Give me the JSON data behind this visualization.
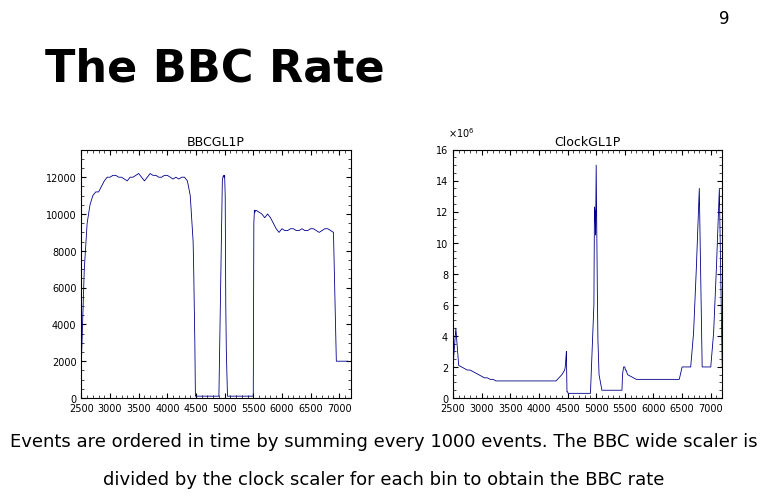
{
  "slide_number": "9",
  "title": "The BBC Rate",
  "subtitle_line1": "Events are ordered in time by summing every 1000 events. The BBC wide scaler is",
  "subtitle_line2": "divided by the clock scaler for each bin to obtain the BBC rate",
  "plot1": {
    "title": "BBCGL1P",
    "xlabel_ticks": [
      2500,
      3000,
      3500,
      4000,
      4500,
      5000,
      5500,
      6000,
      6500,
      7000
    ],
    "ylabel_ticks": [
      0,
      2000,
      4000,
      6000,
      8000,
      10000,
      12000
    ],
    "xlim": [
      2500,
      7200
    ],
    "ylim": [
      0,
      13500
    ],
    "color": "#00008B",
    "data_x": [
      2500,
      2550,
      2600,
      2650,
      2700,
      2750,
      2800,
      2850,
      2900,
      2950,
      3000,
      3050,
      3100,
      3150,
      3200,
      3250,
      3300,
      3350,
      3400,
      3450,
      3500,
      3550,
      3600,
      3650,
      3700,
      3750,
      3800,
      3850,
      3900,
      3950,
      4000,
      4050,
      4100,
      4150,
      4200,
      4250,
      4300,
      4350,
      4400,
      4450,
      4460,
      4470,
      4480,
      4490,
      4500,
      4510,
      4520,
      4530,
      4540,
      4550,
      4560,
      4570,
      4580,
      4590,
      4600,
      4650,
      4700,
      4750,
      4800,
      4850,
      4900,
      4960,
      4970,
      4980,
      4990,
      5000,
      5010,
      5020,
      5030,
      5050,
      5100,
      5150,
      5200,
      5250,
      5300,
      5350,
      5400,
      5450,
      5460,
      5470,
      5480,
      5490,
      5500,
      5510,
      5520,
      5530,
      5540,
      5550,
      5600,
      5650,
      5700,
      5750,
      5800,
      5850,
      5900,
      5950,
      6000,
      6050,
      6100,
      6150,
      6200,
      6250,
      6300,
      6350,
      6400,
      6450,
      6500,
      6550,
      6600,
      6650,
      6700,
      6750,
      6800,
      6850,
      6900,
      6950,
      7000,
      7050,
      7100,
      7150,
      7200
    ],
    "data_y": [
      2000,
      7000,
      9500,
      10500,
      11000,
      11200,
      11200,
      11500,
      11800,
      12000,
      12000,
      12100,
      12100,
      12000,
      12000,
      11900,
      11800,
      12000,
      12000,
      12100,
      12200,
      12000,
      11800,
      12000,
      12200,
      12100,
      12100,
      12000,
      12000,
      12100,
      12100,
      12000,
      11900,
      12000,
      11900,
      12000,
      12000,
      11800,
      11000,
      8500,
      7000,
      5000,
      3000,
      100,
      100,
      100,
      100,
      100,
      100,
      100,
      100,
      100,
      100,
      100,
      100,
      100,
      100,
      100,
      100,
      100,
      100,
      11800,
      12000,
      12100,
      12000,
      12100,
      11000,
      5000,
      2500,
      100,
      100,
      100,
      100,
      100,
      100,
      100,
      100,
      100,
      100,
      100,
      100,
      100,
      100,
      9500,
      10200,
      10100,
      10200,
      10200,
      10100,
      10000,
      9800,
      10000,
      9800,
      9500,
      9200,
      9000,
      9200,
      9100,
      9100,
      9200,
      9200,
      9100,
      9100,
      9200,
      9100,
      9100,
      9200,
      9200,
      9100,
      9000,
      9100,
      9200,
      9200,
      9100,
      9000,
      2000,
      2000,
      2000,
      2000,
      2000
    ]
  },
  "plot2": {
    "title": "ClockGL1P",
    "scale_label": "x10^6",
    "xlabel_ticks": [
      2500,
      3000,
      3500,
      4000,
      4500,
      5000,
      5500,
      6000,
      6500,
      7000
    ],
    "ylabel_ticks": [
      0,
      2,
      4,
      6,
      8,
      10,
      12,
      14,
      16
    ],
    "xlim": [
      2500,
      7200
    ],
    "ylim": [
      0,
      16
    ],
    "color": "#00008B",
    "data_x": [
      2500,
      2550,
      2600,
      2650,
      2700,
      2750,
      2800,
      2850,
      2900,
      2950,
      3000,
      3050,
      3100,
      3150,
      3200,
      3250,
      3300,
      3350,
      3400,
      3450,
      3500,
      3550,
      3600,
      3650,
      3700,
      3750,
      3800,
      3850,
      3900,
      3950,
      4000,
      4050,
      4100,
      4150,
      4200,
      4250,
      4300,
      4350,
      4400,
      4450,
      4460,
      4470,
      4480,
      4490,
      4500,
      4510,
      4520,
      4530,
      4540,
      4550,
      4560,
      4570,
      4580,
      4590,
      4600,
      4650,
      4700,
      4750,
      4800,
      4850,
      4900,
      4960,
      4970,
      4980,
      4990,
      5000,
      5010,
      5020,
      5030,
      5050,
      5100,
      5150,
      5200,
      5250,
      5300,
      5350,
      5400,
      5450,
      5460,
      5470,
      5480,
      5490,
      5500,
      5510,
      5520,
      5530,
      5540,
      5550,
      5600,
      5650,
      5700,
      5750,
      5800,
      5850,
      5900,
      5950,
      6000,
      6050,
      6100,
      6150,
      6200,
      6250,
      6300,
      6350,
      6400,
      6450,
      6500,
      6550,
      6600,
      6650,
      6700,
      6750,
      6800,
      6850,
      6900,
      6950,
      7000,
      7050,
      7100,
      7150,
      7200
    ],
    "data_y": [
      2.0,
      4.5,
      2.1,
      2.0,
      1.9,
      1.8,
      1.8,
      1.7,
      1.6,
      1.5,
      1.4,
      1.3,
      1.3,
      1.2,
      1.2,
      1.1,
      1.1,
      1.1,
      1.1,
      1.1,
      1.1,
      1.1,
      1.1,
      1.1,
      1.1,
      1.1,
      1.1,
      1.1,
      1.1,
      1.1,
      1.1,
      1.1,
      1.1,
      1.1,
      1.1,
      1.1,
      1.1,
      1.3,
      1.5,
      1.8,
      2.0,
      2.5,
      3.0,
      0.4,
      0.4,
      0.3,
      0.3,
      0.3,
      0.3,
      0.3,
      0.3,
      0.3,
      0.3,
      0.3,
      0.3,
      0.3,
      0.3,
      0.3,
      0.3,
      0.3,
      0.3,
      6.0,
      12.3,
      12.0,
      10.5,
      15.0,
      11.0,
      7.0,
      3.8,
      1.5,
      0.5,
      0.5,
      0.5,
      0.5,
      0.5,
      0.5,
      0.5,
      0.5,
      1.5,
      1.8,
      2.0,
      2.0,
      2.0,
      1.8,
      1.8,
      1.7,
      1.6,
      1.5,
      1.4,
      1.3,
      1.2,
      1.2,
      1.2,
      1.2,
      1.2,
      1.2,
      1.2,
      1.2,
      1.2,
      1.2,
      1.2,
      1.2,
      1.2,
      1.2,
      1.2,
      1.2,
      2.0,
      2.0,
      2.0,
      2.0,
      4.2,
      8.5,
      13.5,
      2.0,
      2.0,
      2.0,
      2.0,
      4.2,
      8.5,
      13.5,
      2.0
    ]
  },
  "background_color": "#ffffff",
  "title_fontsize": 32,
  "slide_number_fontsize": 12,
  "subtitle_fontsize": 13,
  "plot_title_fontsize": 9,
  "tick_fontsize": 7
}
